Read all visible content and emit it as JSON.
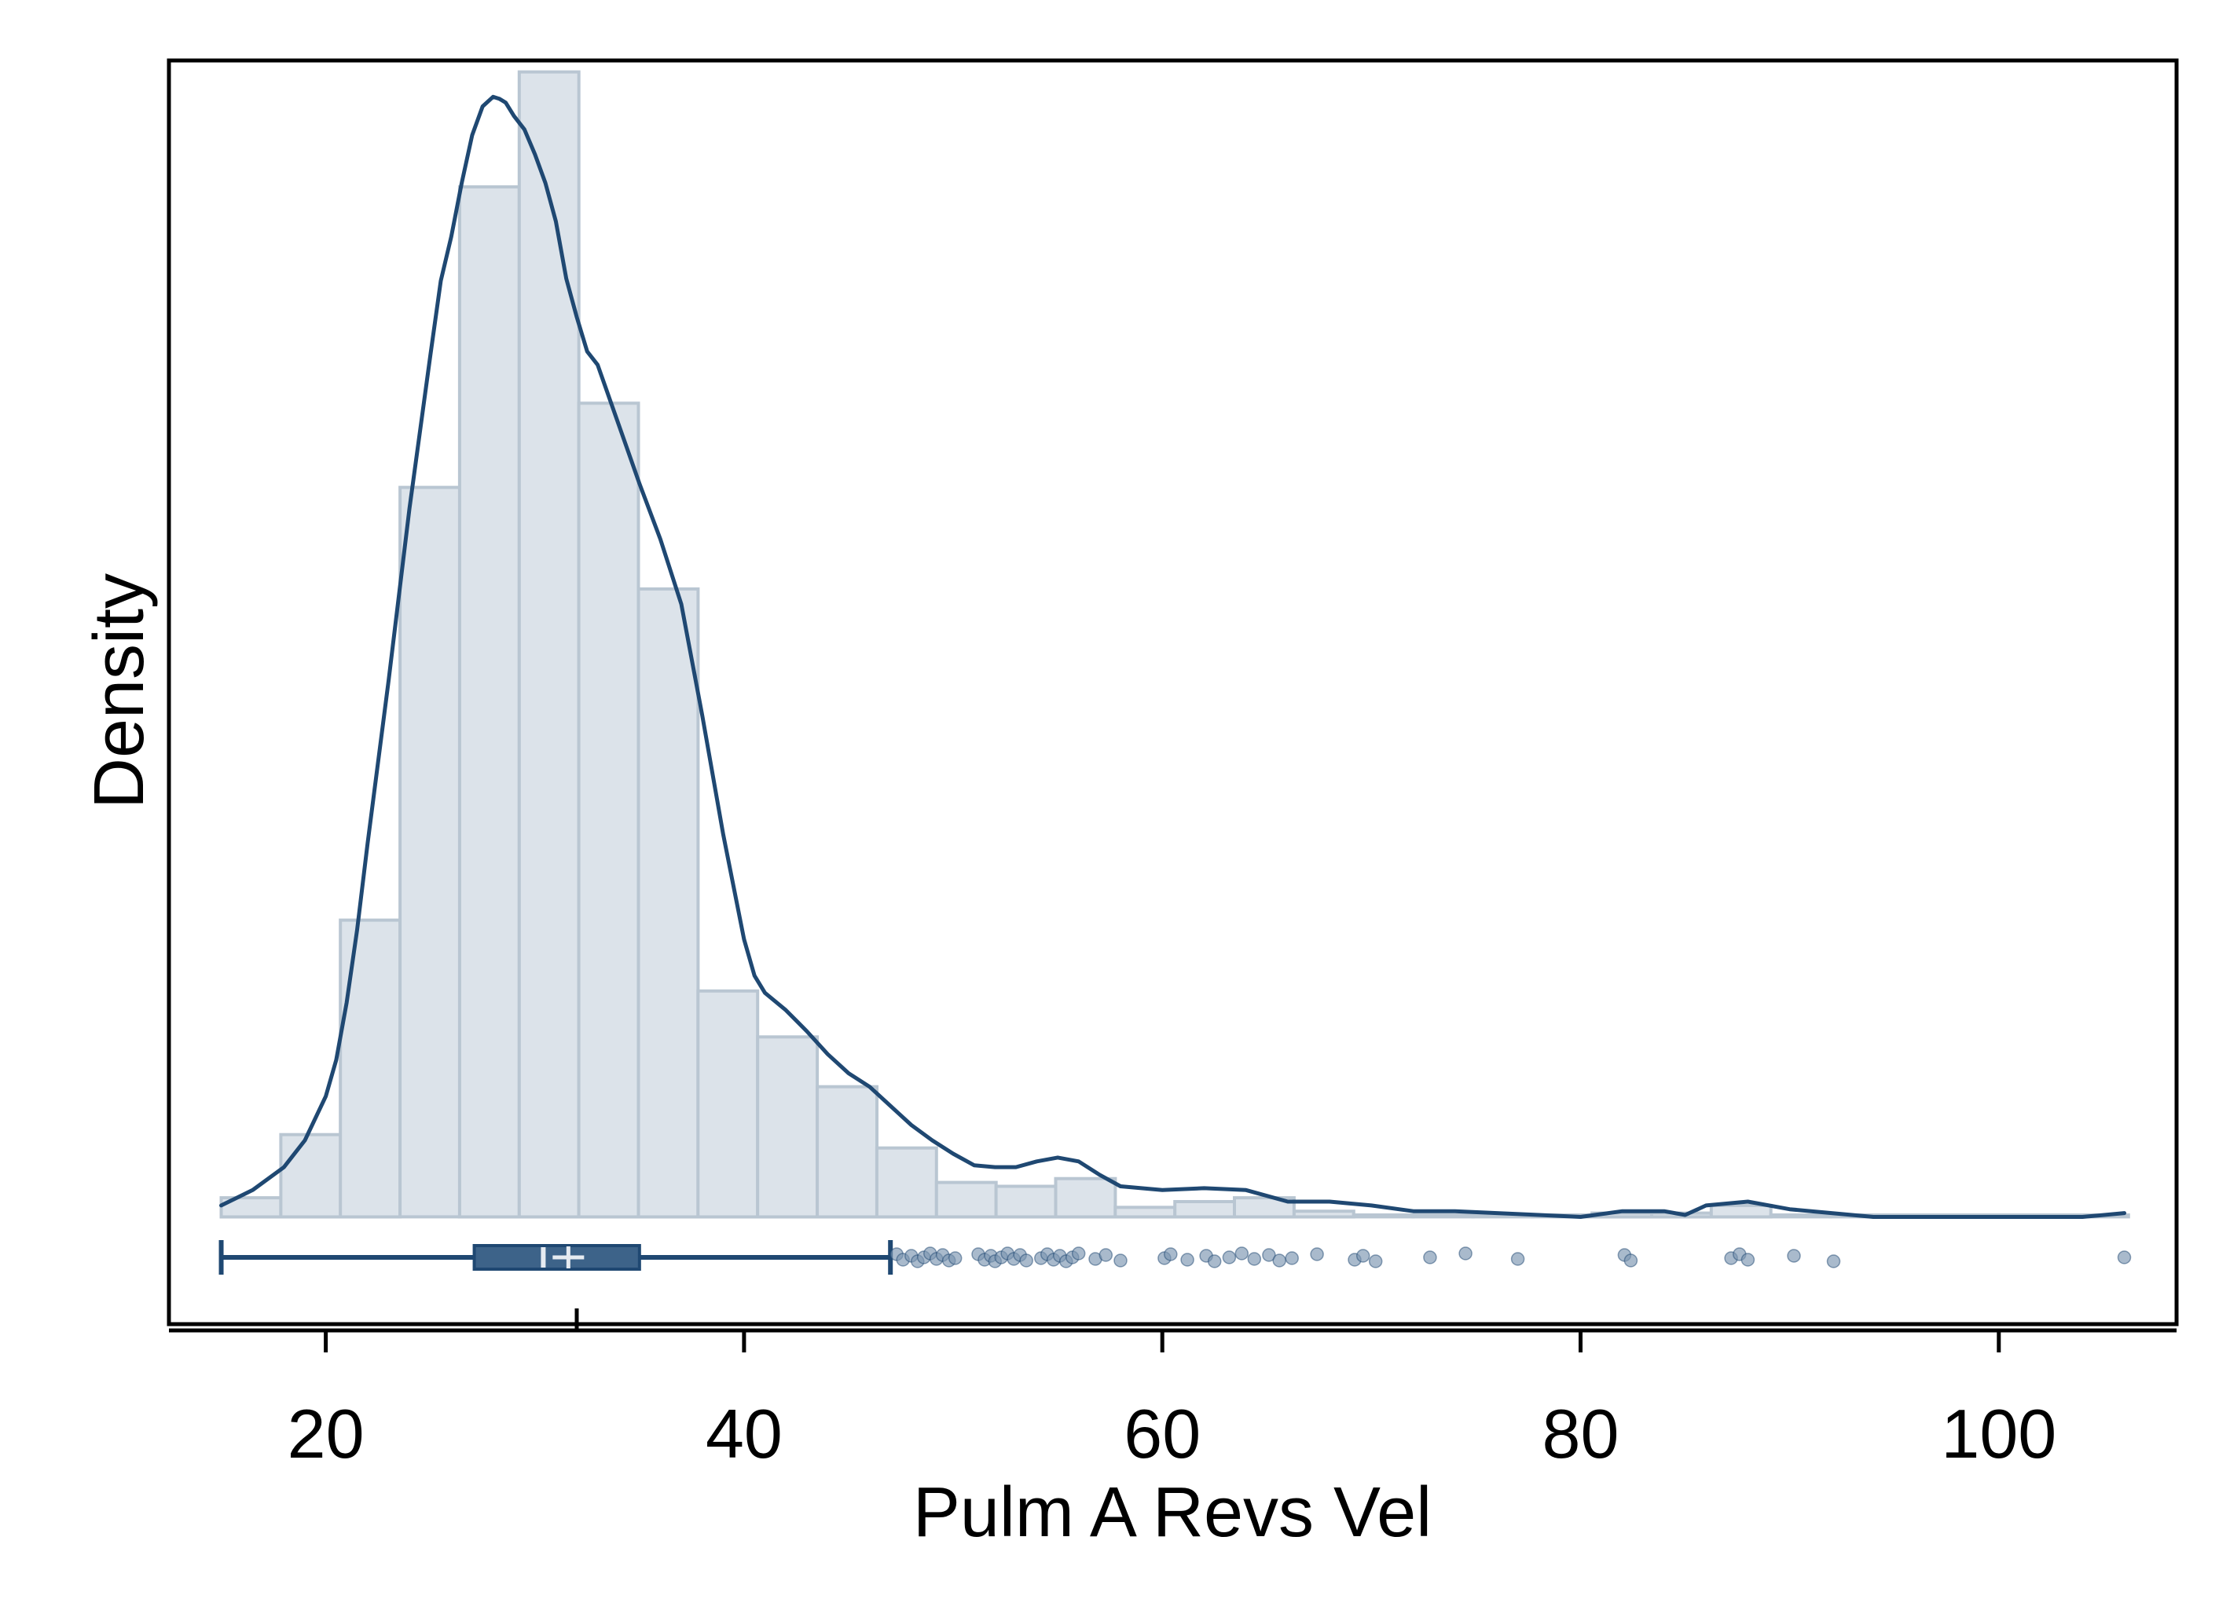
{
  "colors": {
    "bar_fill": "#dce3ea",
    "bar_stroke": "#b9c6d2",
    "kde_line": "#1f4872",
    "box_fill": "#3d6389",
    "box_line": "#1f4872",
    "outlier": "#7b95b0",
    "frame": "#000000"
  },
  "chart_data": {
    "type": "histogram",
    "title": "",
    "xlabel": "Pulm A Revs Vel",
    "ylabel": "Density",
    "xlim": [
      12.5,
      108.5
    ],
    "ylim": [
      -0.0056,
      0.0604
    ],
    "xticks": [
      20,
      40,
      60,
      80,
      100
    ],
    "xtick_labels": [
      "20",
      "40",
      "60",
      "80",
      "100"
    ],
    "minor_tick": 32,
    "grid": false,
    "legend": "none",
    "bin_width": 2.85,
    "bins": [
      {
        "x0": 15.0,
        "density": 0.001
      },
      {
        "x0": 17.85,
        "density": 0.0043
      },
      {
        "x0": 20.7,
        "density": 0.0155
      },
      {
        "x0": 23.55,
        "density": 0.0381
      },
      {
        "x0": 26.4,
        "density": 0.0538
      },
      {
        "x0": 29.25,
        "density": 0.0598
      },
      {
        "x0": 32.1,
        "density": 0.0425
      },
      {
        "x0": 34.95,
        "density": 0.0328
      },
      {
        "x0": 37.8,
        "density": 0.0118
      },
      {
        "x0": 40.65,
        "density": 0.0094
      },
      {
        "x0": 43.5,
        "density": 0.0068
      },
      {
        "x0": 46.35,
        "density": 0.0036
      },
      {
        "x0": 49.2,
        "density": 0.0018
      },
      {
        "x0": 52.05,
        "density": 0.0016
      },
      {
        "x0": 54.9,
        "density": 0.002
      },
      {
        "x0": 57.75,
        "density": 0.0005
      },
      {
        "x0": 60.6,
        "density": 0.0008
      },
      {
        "x0": 63.45,
        "density": 0.001
      },
      {
        "x0": 66.3,
        "density": 0.0003
      },
      {
        "x0": 69.15,
        "density": 0.0001
      },
      {
        "x0": 72.0,
        "density": 0.0001
      },
      {
        "x0": 74.85,
        "density": 0.0001
      },
      {
        "x0": 77.7,
        "density": 0.0001
      },
      {
        "x0": 80.55,
        "density": 0.0002
      },
      {
        "x0": 83.4,
        "density": 0.0002
      },
      {
        "x0": 86.25,
        "density": 0.0006
      },
      {
        "x0": 89.1,
        "density": 0.0001
      },
      {
        "x0": 91.95,
        "density": 0.0001
      },
      {
        "x0": 94.8,
        "density": 0.0001
      },
      {
        "x0": 97.65,
        "density": 0.0001
      },
      {
        "x0": 100.5,
        "density": 0.0001
      },
      {
        "x0": 103.35,
        "density": 0.0001
      }
    ],
    "kde": {
      "x": [
        15,
        16.5,
        18,
        19,
        20,
        20.5,
        21,
        21.5,
        22,
        23,
        24,
        25,
        25.5,
        26,
        26.5,
        27,
        27.5,
        28,
        28.3,
        28.6,
        29,
        29.5,
        30,
        30.5,
        31,
        31.5,
        32,
        32.5,
        33,
        34,
        35,
        36,
        37,
        38,
        39,
        40,
        40.5,
        41,
        42,
        43,
        44,
        45,
        46,
        47,
        48,
        49,
        50,
        51,
        52,
        53,
        54,
        55,
        56,
        57,
        58,
        60,
        62,
        64,
        66,
        68,
        70,
        72,
        74,
        76,
        78,
        80,
        82,
        84,
        85,
        86,
        88,
        90,
        92,
        94,
        96,
        98,
        100,
        102,
        104,
        106
      ],
      "y": [
        0.0006,
        0.0014,
        0.0026,
        0.004,
        0.0063,
        0.0082,
        0.0112,
        0.015,
        0.0195,
        0.028,
        0.037,
        0.045,
        0.0489,
        0.0512,
        0.054,
        0.0565,
        0.058,
        0.0585,
        0.0584,
        0.0582,
        0.0575,
        0.0568,
        0.0555,
        0.054,
        0.052,
        0.049,
        0.047,
        0.0452,
        0.0445,
        0.0414,
        0.0383,
        0.0354,
        0.032,
        0.0262,
        0.02,
        0.0145,
        0.0126,
        0.0117,
        0.0108,
        0.0097,
        0.0085,
        0.0075,
        0.0068,
        0.0058,
        0.0048,
        0.004,
        0.0033,
        0.0027,
        0.0026,
        0.0026,
        0.0029,
        0.0031,
        0.0029,
        0.0022,
        0.0016,
        0.0014,
        0.0015,
        0.0014,
        0.0008,
        0.0008,
        0.0006,
        0.0003,
        0.0003,
        0.0002,
        0.0001,
        0.0,
        0.0003,
        0.0003,
        0.0001,
        0.0006,
        0.0008,
        0.0004,
        0.0002,
        0.0,
        0.0,
        0.0,
        0.0,
        0.0,
        0.0,
        0.0002
      ]
    },
    "boxplot": {
      "min": 15.0,
      "q1": 27.1,
      "median": 30.4,
      "mean": 31.6,
      "q3": 35.0,
      "whisker_high": 47.0,
      "outliers": [
        47.3,
        47.6,
        48.0,
        48.3,
        48.6,
        48.9,
        49.2,
        49.5,
        49.8,
        50.1,
        51.2,
        51.5,
        51.8,
        52.0,
        52.3,
        52.6,
        52.9,
        53.2,
        53.5,
        54.2,
        54.5,
        54.8,
        55.1,
        55.4,
        55.7,
        56.0,
        56.8,
        57.3,
        58.0,
        60.1,
        60.4,
        61.2,
        62.1,
        62.5,
        63.2,
        63.8,
        64.4,
        65.1,
        65.6,
        66.2,
        67.4,
        69.2,
        69.6,
        70.2,
        72.8,
        74.5,
        77.0,
        82.1,
        82.4,
        87.2,
        87.6,
        88.0,
        90.2,
        92.1,
        106.0
      ]
    }
  }
}
